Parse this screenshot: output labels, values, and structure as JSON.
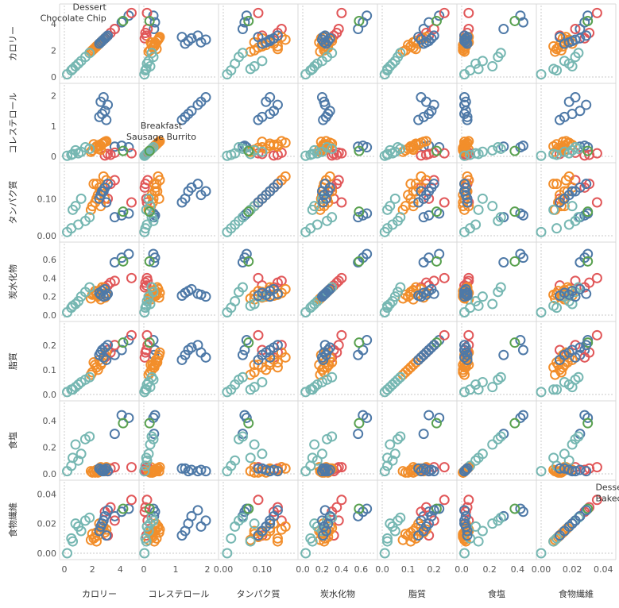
{
  "chart_data": {
    "type": "scatter",
    "layout": "scatter-plot-matrix",
    "marker": "open-circle",
    "variables": [
      {
        "name": "カロリー",
        "range": [
          0,
          5
        ],
        "ticks": [
          {
            "v": 0,
            "t": "0"
          },
          {
            "v": 2,
            "t": "2"
          },
          {
            "v": 4,
            "t": "4"
          }
        ]
      },
      {
        "name": "コレステロール",
        "range": [
          0,
          2.2
        ],
        "ticks": [
          {
            "v": 0,
            "t": "0"
          },
          {
            "v": 1,
            "t": "1"
          },
          {
            "v": 2,
            "t": "2"
          }
        ]
      },
      {
        "name": "タンパク質",
        "range": [
          0,
          0.18
        ],
        "ticks": [
          {
            "v": 0,
            "t": "0.00"
          },
          {
            "v": 0.1,
            "t": "0.10"
          }
        ]
      },
      {
        "name": "炭水化物",
        "range": [
          0,
          0.72
        ],
        "ticks": [
          {
            "v": 0,
            "t": "0.0"
          },
          {
            "v": 0.2,
            "t": "0.2"
          },
          {
            "v": 0.4,
            "t": "0.4"
          },
          {
            "v": 0.6,
            "t": "0.6"
          }
        ]
      },
      {
        "name": "脂質",
        "range": [
          0,
          0.27
        ],
        "ticks": [
          {
            "v": 0,
            "t": "0.0"
          },
          {
            "v": 0.1,
            "t": "0.1"
          },
          {
            "v": 0.2,
            "t": "0.2"
          }
        ]
      },
      {
        "name": "食塩",
        "range": [
          0,
          0.5
        ],
        "ticks": [
          {
            "v": 0,
            "t": "0.0"
          },
          {
            "v": 0.2,
            "t": "0.2"
          },
          {
            "v": 0.4,
            "t": "0.4"
          }
        ]
      },
      {
        "name": "食物繊維",
        "range": [
          0,
          0.045
        ],
        "ticks": [
          {
            "v": 0,
            "t": "0.00"
          },
          {
            "v": 0.02,
            "t": "0.02"
          },
          {
            "v": 0.04,
            "t": "0.04"
          }
        ]
      }
    ],
    "groups": [
      {
        "color": "#4e79a7"
      },
      {
        "color": "#f28e2b"
      },
      {
        "color": "#59a14f"
      },
      {
        "color": "#e15759"
      },
      {
        "color": "#76b7b2"
      }
    ],
    "points": [
      [
        0,
        4.1,
        0.35,
        0.055,
        0.62,
        0.18,
        0.44,
        0.028
      ],
      [
        0,
        4.6,
        0.3,
        0.06,
        0.66,
        0.22,
        0.42,
        0.03
      ],
      [
        0,
        3.6,
        0.32,
        0.05,
        0.57,
        0.16,
        0.3,
        0.025
      ],
      [
        3,
        4.8,
        0.1,
        0.09,
        0.4,
        0.24,
        0.05,
        0.036
      ],
      [
        3,
        3.3,
        0.05,
        0.14,
        0.35,
        0.17,
        0.04,
        0.031
      ],
      [
        3,
        2.9,
        0.03,
        0.13,
        0.3,
        0.15,
        0.03,
        0.028
      ],
      [
        3,
        3.6,
        0.12,
        0.15,
        0.37,
        0.2,
        0.05,
        0.022
      ],
      [
        3,
        3.1,
        0.08,
        0.1,
        0.32,
        0.18,
        0.02,
        0.012
      ],
      [
        1,
        2.0,
        0.2,
        0.08,
        0.22,
        0.09,
        0.01,
        0.013
      ],
      [
        1,
        2.3,
        0.3,
        0.1,
        0.25,
        0.11,
        0.02,
        0.014
      ],
      [
        1,
        2.6,
        0.35,
        0.12,
        0.27,
        0.12,
        0.03,
        0.015
      ],
      [
        1,
        2.1,
        0.4,
        0.14,
        0.23,
        0.13,
        0.02,
        0.01
      ],
      [
        1,
        2.8,
        0.45,
        0.16,
        0.28,
        0.15,
        0.04,
        0.018
      ],
      [
        1,
        2.4,
        0.25,
        0.11,
        0.2,
        0.1,
        0.01,
        0.012
      ],
      [
        1,
        3.0,
        0.5,
        0.15,
        0.24,
        0.17,
        0.05,
        0.016
      ],
      [
        1,
        1.9,
        0.15,
        0.07,
        0.18,
        0.08,
        0.02,
        0.009
      ],
      [
        1,
        2.5,
        0.38,
        0.13,
        0.21,
        0.14,
        0.03,
        0.02
      ],
      [
        1,
        2.2,
        0.28,
        0.09,
        0.26,
        0.12,
        0.01,
        0.011
      ],
      [
        1,
        2.7,
        0.42,
        0.12,
        0.3,
        0.13,
        0.04,
        0.017
      ],
      [
        1,
        2.9,
        0.48,
        0.1,
        0.19,
        0.16,
        0.02,
        0.014
      ],
      [
        1,
        2.3,
        0.33,
        0.14,
        0.22,
        0.11,
        0.03,
        0.008
      ],
      [
        1,
        2.6,
        0.22,
        0.08,
        0.17,
        0.12,
        0.05,
        0.015
      ],
      [
        4,
        0.5,
        0.05,
        0.02,
        0.08,
        0.02,
        0.06,
        0.01
      ],
      [
        4,
        1.0,
        0.1,
        0.03,
        0.15,
        0.04,
        0.1,
        0.018
      ],
      [
        4,
        0.8,
        0.2,
        0.08,
        0.12,
        0.03,
        0.22,
        0.02
      ],
      [
        4,
        1.5,
        0.3,
        0.04,
        0.25,
        0.06,
        0.26,
        0.022
      ],
      [
        4,
        0.2,
        0.02,
        0.01,
        0.03,
        0.01,
        0.02,
        0.0
      ],
      [
        4,
        1.2,
        0.15,
        0.1,
        0.2,
        0.05,
        0.15,
        0.015
      ],
      [
        4,
        1.8,
        0.25,
        0.05,
        0.3,
        0.07,
        0.28,
        0.024
      ],
      [
        4,
        0.6,
        0.08,
        0.07,
        0.1,
        0.02,
        0.12,
        0.008
      ],
      [
        2,
        4.2,
        0.18,
        0.065,
        0.58,
        0.21,
        0.38,
        0.03
      ],
      [
        0,
        2.7,
        1.4,
        0.12,
        0.26,
        0.18,
        0.02,
        0.02
      ],
      [
        0,
        2.9,
        1.5,
        0.13,
        0.28,
        0.19,
        0.03,
        0.025
      ],
      [
        0,
        2.5,
        1.3,
        0.1,
        0.24,
        0.16,
        0.04,
        0.015
      ],
      [
        0,
        3.1,
        1.7,
        0.14,
        0.23,
        0.2,
        0.02,
        0.029
      ],
      [
        0,
        2.6,
        1.8,
        0.11,
        0.22,
        0.17,
        0.03,
        0.018
      ],
      [
        0,
        3.0,
        1.2,
        0.09,
        0.21,
        0.14,
        0.04,
        0.012
      ],
      [
        0,
        2.8,
        1.95,
        0.12,
        0.2,
        0.15,
        0.02,
        0.022
      ]
    ],
    "annotations": [
      {
        "row": 0,
        "col": 0,
        "x": 3.0,
        "y": 4.2,
        "lines": [
          "Dessert",
          "Chocolate Chip"
        ],
        "align": "end"
      },
      {
        "row": 1,
        "col": 1,
        "x": 0.55,
        "y": 0.55,
        "lines": [
          "Breakfast",
          "Sausage Burrito"
        ],
        "align": "middle"
      },
      {
        "row": 6,
        "col": 6,
        "x": 0.035,
        "y": 0.035,
        "lines": [
          "Dessert",
          "Baked Apple"
        ],
        "align": "start"
      }
    ]
  }
}
